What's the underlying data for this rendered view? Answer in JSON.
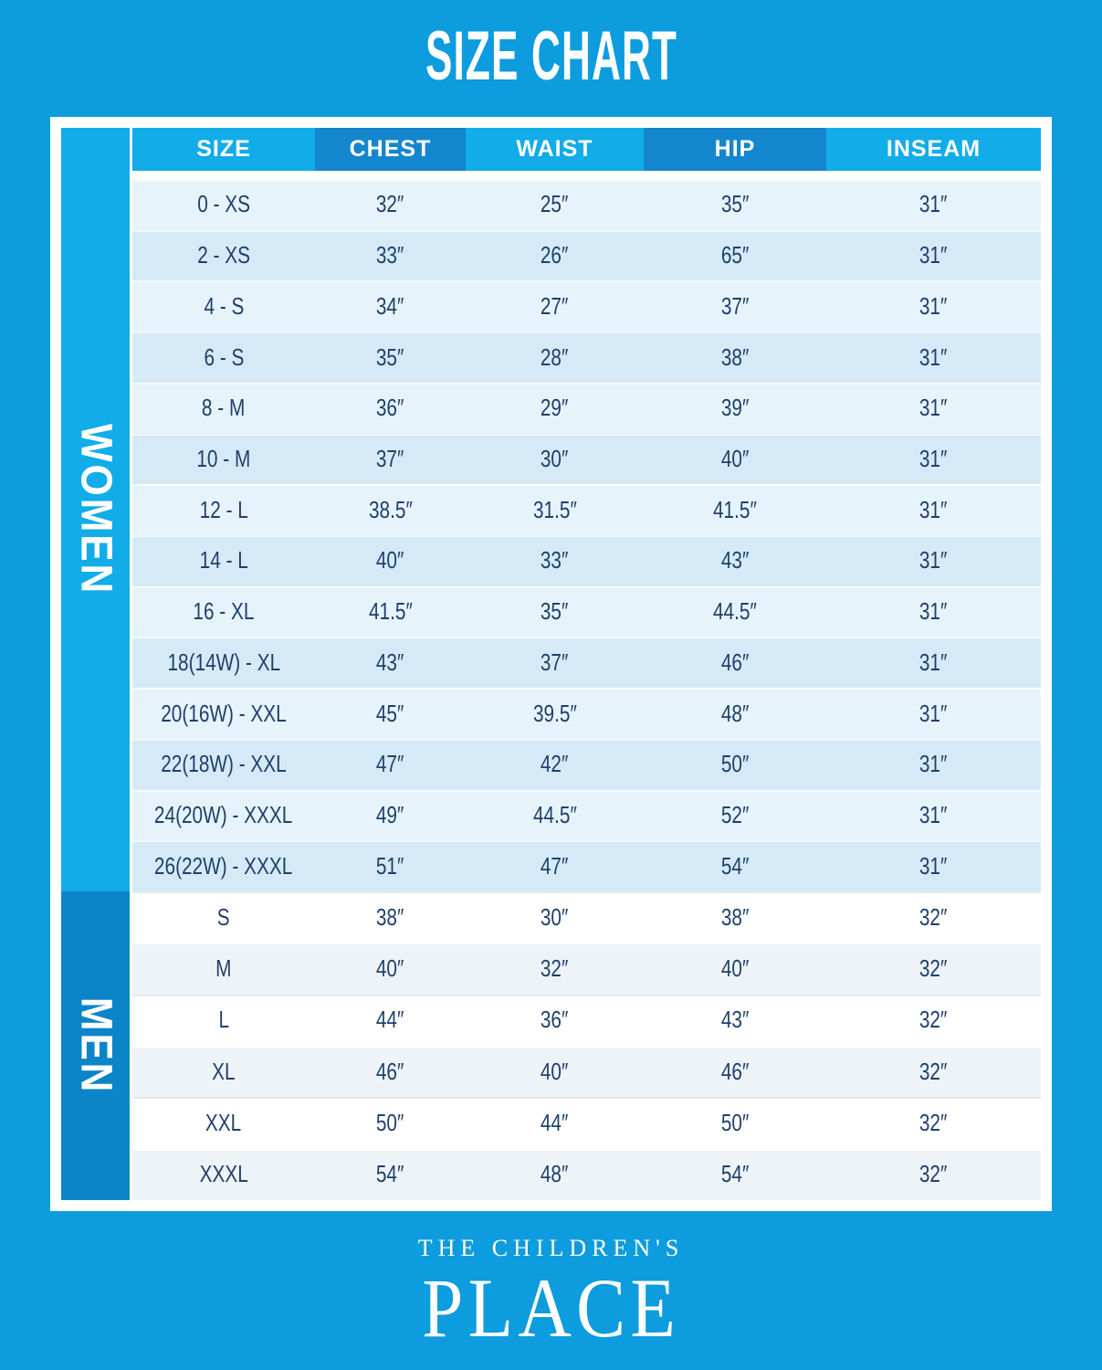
{
  "title": "SIZE CHART",
  "brand": {
    "line1": "THE CHILDREN'S",
    "line2": "PLACE"
  },
  "colors": {
    "page_background": "#0D9CDE",
    "band_cyan": "#12ACE9",
    "header_block_dark": "#1486CE",
    "men_sidebar_dark": "#0C85C8",
    "women_row_light": "#E6F3FB",
    "women_row_shaded": "#D5EAF6",
    "men_row_light": "#FFFFFF",
    "men_row_shaded": "#EEF3F7",
    "cell_text": "#20406B",
    "frame_white": "#FFFFFF"
  },
  "chart_data": {
    "type": "table",
    "title": "SIZE CHART",
    "columns": [
      "SIZE",
      "CHEST",
      "WAIST",
      "HIP",
      "INSEAM"
    ],
    "sections": [
      {
        "label": "WOMEN",
        "rows": [
          [
            "0 - XS",
            "32″",
            "25″",
            "35″",
            "31″"
          ],
          [
            "2 - XS",
            "33″",
            "26″",
            "65″",
            "31″"
          ],
          [
            "4 - S",
            "34″",
            "27″",
            "37″",
            "31″"
          ],
          [
            "6 - S",
            "35″",
            "28″",
            "38″",
            "31″"
          ],
          [
            "8 - M",
            "36″",
            "29″",
            "39″",
            "31″"
          ],
          [
            "10 - M",
            "37″",
            "30″",
            "40″",
            "31″"
          ],
          [
            "12 - L",
            "38.5″",
            "31.5″",
            "41.5″",
            "31″"
          ],
          [
            "14 - L",
            "40″",
            "33″",
            "43″",
            "31″"
          ],
          [
            "16 - XL",
            "41.5″",
            "35″",
            "44.5″",
            "31″"
          ],
          [
            "18(14W) - XL",
            "43″",
            "37″",
            "46″",
            "31″"
          ],
          [
            "20(16W) - XXL",
            "45″",
            "39.5″",
            "48″",
            "31″"
          ],
          [
            "22(18W) - XXL",
            "47″",
            "42″",
            "50″",
            "31″"
          ],
          [
            "24(20W) - XXXL",
            "49″",
            "44.5″",
            "52″",
            "31″"
          ],
          [
            "26(22W) - XXXL",
            "51″",
            "47″",
            "54″",
            "31″"
          ]
        ]
      },
      {
        "label": "MEN",
        "rows": [
          [
            "S",
            "38″",
            "30″",
            "38″",
            "32″"
          ],
          [
            "M",
            "40″",
            "32″",
            "40″",
            "32″"
          ],
          [
            "L",
            "44″",
            "36″",
            "43″",
            "32″"
          ],
          [
            "XL",
            "46″",
            "40″",
            "46″",
            "32″"
          ],
          [
            "XXL",
            "50″",
            "44″",
            "50″",
            "32″"
          ],
          [
            "XXXL",
            "54″",
            "48″",
            "54″",
            "32″"
          ]
        ]
      }
    ]
  }
}
